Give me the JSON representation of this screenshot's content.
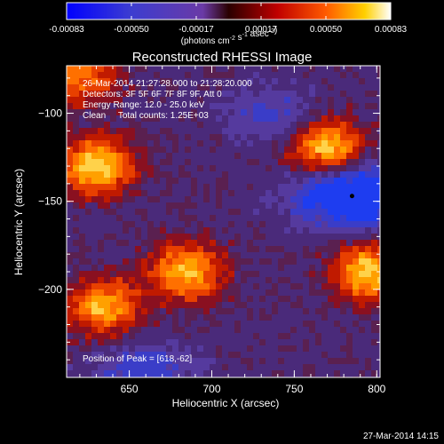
{
  "colorbar": {
    "ticks": [
      "-0.00083",
      "-0.00050",
      "-0.00017",
      "0.00017",
      "0.00050",
      "0.00083"
    ],
    "unit_label": "(photons cm^-2 s^-1 asec^-2)",
    "range": [
      -0.00083,
      0.00083
    ]
  },
  "chart_data": {
    "type": "heatmap",
    "title": "Reconstructed RHESSI Image",
    "xlabel": "Heliocentric X (arcsec)",
    "ylabel": "Heliocentric Y (arcsec)",
    "xlim": [
      612,
      802
    ],
    "ylim": [
      -250,
      -73
    ],
    "xticks": [
      650,
      700,
      750,
      800
    ],
    "yticks": [
      -100,
      -150,
      -200
    ],
    "peak": {
      "x": 618,
      "y": -62
    },
    "sources": [
      {
        "x": 630,
        "y": -130,
        "value": 0.00083
      },
      {
        "x": 770,
        "y": -120,
        "value": 0.00078
      },
      {
        "x": 685,
        "y": -190,
        "value": 0.00072
      },
      {
        "x": 635,
        "y": -210,
        "value": 0.0007
      },
      {
        "x": 795,
        "y": -190,
        "value": 0.0008
      },
      {
        "x": 620,
        "y": -78,
        "value": 0.0006
      }
    ],
    "minimum": {
      "x": 785,
      "y": -147,
      "value": -0.00083
    },
    "grid": false
  },
  "annotations": {
    "line1": "26-Mar-2014 21:27:28.000 to 21:28:20.000",
    "line2": "Detectors: 3F 5F 6F 7F 8F 9F, Att 0",
    "line3": "Energy Range: 12.0 - 25.0 keV",
    "line4": "Clean     Total counts: 1.25E+03",
    "peak_text": "Position of Peak = [618,-62]"
  },
  "footer": {
    "timestamp": "27-Mar-2014 14:15"
  }
}
